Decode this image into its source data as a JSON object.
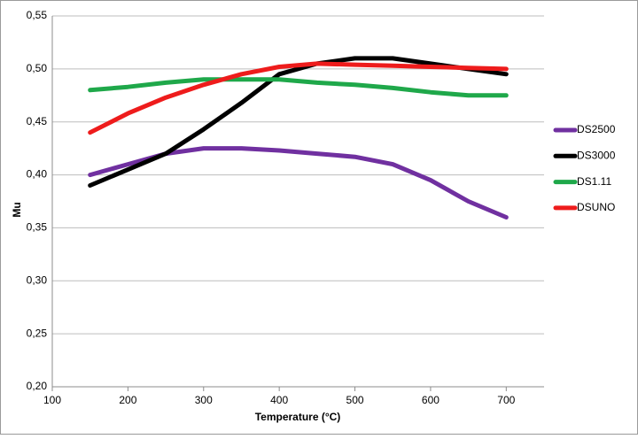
{
  "chart_data": {
    "type": "line",
    "x_label": "Temperature (°C)",
    "y_label": "Mu",
    "x": [
      150,
      200,
      250,
      300,
      350,
      400,
      450,
      500,
      550,
      600,
      650,
      700
    ],
    "series": [
      {
        "name": "DS2500",
        "color": "#7030a0",
        "values": [
          0.4,
          0.41,
          0.42,
          0.425,
          0.425,
          0.423,
          0.42,
          0.417,
          0.41,
          0.395,
          0.375,
          0.36
        ]
      },
      {
        "name": "DS3000",
        "color": "#000000",
        "values": [
          0.39,
          0.405,
          0.42,
          0.443,
          0.468,
          0.495,
          0.505,
          0.51,
          0.51,
          0.505,
          0.5,
          0.495
        ]
      },
      {
        "name": "DS1.11",
        "color": "#1fa84a",
        "values": [
          0.48,
          0.483,
          0.487,
          0.49,
          0.49,
          0.49,
          0.487,
          0.485,
          0.482,
          0.478,
          0.475,
          0.475
        ]
      },
      {
        "name": "DSUNO",
        "color": "#ee1c1c",
        "values": [
          0.44,
          0.458,
          0.473,
          0.485,
          0.495,
          0.502,
          0.505,
          0.504,
          0.503,
          0.502,
          0.501,
          0.5
        ]
      }
    ],
    "xlim": [
      100,
      750
    ],
    "xticks": [
      100,
      200,
      300,
      400,
      500,
      600,
      700
    ],
    "ylim": [
      0.2,
      0.55
    ],
    "yticks": [
      {
        "value": 0.2,
        "label": "0,20"
      },
      {
        "value": 0.25,
        "label": "0,25"
      },
      {
        "value": 0.3,
        "label": "0,30"
      },
      {
        "value": 0.35,
        "label": "0,35"
      },
      {
        "value": 0.4,
        "label": "0,40"
      },
      {
        "value": 0.45,
        "label": "0,45"
      },
      {
        "value": 0.5,
        "label": "0,50"
      },
      {
        "value": 0.55,
        "label": "0,55"
      }
    ],
    "grid": true,
    "legend": "right"
  }
}
